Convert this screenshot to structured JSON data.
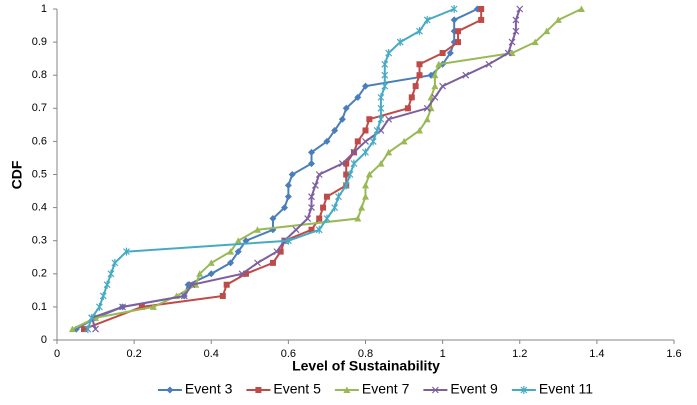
{
  "chart_data": {
    "type": "line",
    "xlabel": "Level of Sustainability",
    "ylabel": "CDF",
    "xlim": [
      0,
      1.6
    ],
    "xticks": [
      0,
      0.2,
      0.4,
      0.6,
      0.8,
      1,
      1.2,
      1.4,
      1.6
    ],
    "ylim": [
      0,
      1
    ],
    "yticks": [
      0,
      0.1,
      0.2,
      0.3,
      0.4,
      0.5,
      0.6,
      0.7,
      0.8,
      0.9,
      1
    ],
    "grid": false,
    "legend": "bottom",
    "series": [
      {
        "name": "Event 3",
        "color": "#4a7ebb",
        "marker": "diamond",
        "x": [
          0.05,
          0.1,
          0.17,
          0.33,
          0.34,
          0.4,
          0.45,
          0.47,
          0.49,
          0.56,
          0.56,
          0.59,
          0.6,
          0.6,
          0.61,
          0.66,
          0.66,
          0.7,
          0.72,
          0.74,
          0.75,
          0.78,
          0.8,
          0.97,
          1.0,
          1.02,
          1.03,
          1.03,
          1.03,
          1.09
        ],
        "values": [
          0.033,
          0.067,
          0.1,
          0.133,
          0.167,
          0.2,
          0.233,
          0.267,
          0.3,
          0.333,
          0.367,
          0.4,
          0.433,
          0.467,
          0.5,
          0.533,
          0.567,
          0.6,
          0.633,
          0.667,
          0.7,
          0.733,
          0.767,
          0.8,
          0.833,
          0.867,
          0.9,
          0.933,
          0.967,
          1.0
        ]
      },
      {
        "name": "Event 5",
        "color": "#be4b48",
        "marker": "square",
        "x": [
          0.07,
          0.22,
          0.43,
          0.44,
          0.49,
          0.56,
          0.58,
          0.59,
          0.66,
          0.68,
          0.69,
          0.7,
          0.75,
          0.75,
          0.75,
          0.77,
          0.78,
          0.8,
          0.81,
          0.91,
          0.92,
          0.93,
          0.94,
          0.94,
          1.0,
          1.04,
          1.04,
          1.1,
          1.1
        ],
        "values": [
          0.033,
          0.1,
          0.133,
          0.167,
          0.2,
          0.233,
          0.267,
          0.3,
          0.333,
          0.367,
          0.4,
          0.433,
          0.467,
          0.5,
          0.533,
          0.567,
          0.6,
          0.633,
          0.667,
          0.7,
          0.733,
          0.767,
          0.8,
          0.833,
          0.867,
          0.9,
          0.933,
          0.967,
          1.0
        ]
      },
      {
        "name": "Event 7",
        "color": "#98b954",
        "marker": "triangle",
        "x": [
          0.04,
          0.1,
          0.25,
          0.31,
          0.36,
          0.37,
          0.4,
          0.45,
          0.47,
          0.52,
          0.78,
          0.79,
          0.8,
          0.8,
          0.81,
          0.84,
          0.86,
          0.9,
          0.94,
          0.96,
          0.97,
          0.97,
          0.98,
          0.98,
          0.99,
          1.18,
          1.24,
          1.27,
          1.3,
          1.36
        ],
        "values": [
          0.033,
          0.067,
          0.1,
          0.133,
          0.167,
          0.2,
          0.233,
          0.267,
          0.3,
          0.333,
          0.367,
          0.4,
          0.433,
          0.467,
          0.5,
          0.533,
          0.567,
          0.6,
          0.633,
          0.667,
          0.7,
          0.733,
          0.767,
          0.8,
          0.833,
          0.867,
          0.9,
          0.933,
          0.967,
          1.0
        ]
      },
      {
        "name": "Event 9",
        "color": "#7d5fa0",
        "marker": "x",
        "x": [
          0.1,
          0.09,
          0.17,
          0.33,
          0.35,
          0.48,
          0.52,
          0.57,
          0.59,
          0.62,
          0.65,
          0.66,
          0.66,
          0.67,
          0.68,
          0.74,
          0.77,
          0.8,
          0.84,
          0.86,
          0.96,
          0.98,
          1.0,
          1.06,
          1.12,
          1.17,
          1.18,
          1.19,
          1.19,
          1.2
        ],
        "values": [
          0.033,
          0.067,
          0.1,
          0.133,
          0.167,
          0.2,
          0.233,
          0.267,
          0.3,
          0.333,
          0.367,
          0.4,
          0.433,
          0.467,
          0.5,
          0.533,
          0.567,
          0.6,
          0.633,
          0.667,
          0.7,
          0.733,
          0.767,
          0.8,
          0.833,
          0.867,
          0.9,
          0.933,
          0.967,
          1.0
        ]
      },
      {
        "name": "Event 11",
        "color": "#46aac5",
        "marker": "star",
        "x": [
          0.08,
          0.09,
          0.11,
          0.12,
          0.13,
          0.14,
          0.15,
          0.18,
          0.6,
          0.68,
          0.7,
          0.72,
          0.73,
          0.75,
          0.76,
          0.77,
          0.8,
          0.82,
          0.83,
          0.84,
          0.84,
          0.84,
          0.85,
          0.85,
          0.85,
          0.86,
          0.89,
          0.94,
          0.96,
          1.03
        ],
        "values": [
          0.033,
          0.067,
          0.1,
          0.133,
          0.167,
          0.2,
          0.233,
          0.267,
          0.3,
          0.333,
          0.367,
          0.4,
          0.433,
          0.467,
          0.5,
          0.533,
          0.567,
          0.6,
          0.633,
          0.667,
          0.7,
          0.733,
          0.767,
          0.8,
          0.833,
          0.867,
          0.9,
          0.933,
          0.967,
          1.0
        ]
      }
    ]
  }
}
